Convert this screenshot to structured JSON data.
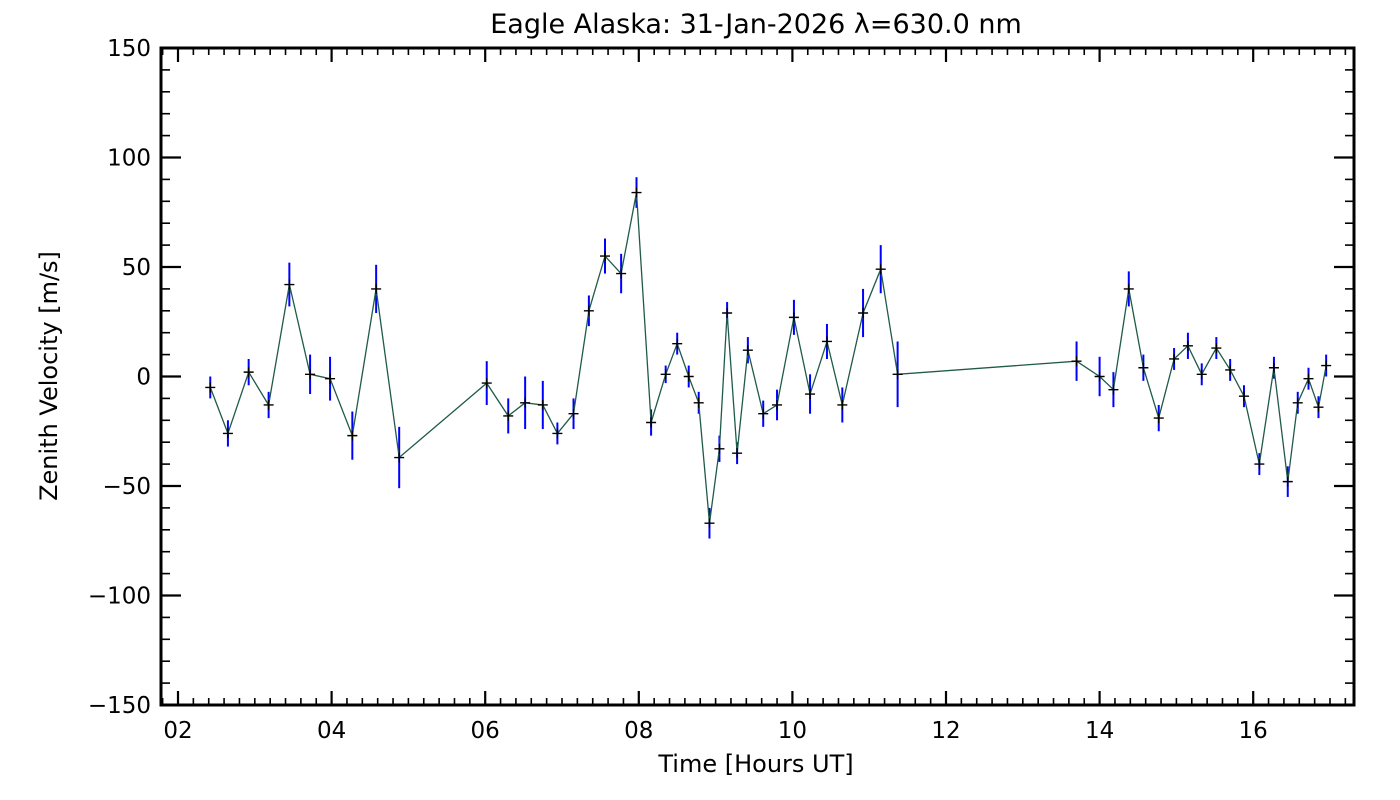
{
  "chart_data": {
    "type": "line",
    "title": "Eagle Alaska: 31-Jan-2026 λ=630.0 nm",
    "xlabel": "Time [Hours UT]",
    "ylabel": "Zenith Velocity [m/s]",
    "xlim": [
      1.8,
      17.6
    ],
    "ylim": [
      -150,
      150
    ],
    "xticks": [
      2,
      4,
      6,
      8,
      10,
      12,
      14,
      16
    ],
    "xtick_labels": [
      "02",
      "04",
      "06",
      "08",
      "10",
      "12",
      "14",
      "16"
    ],
    "yticks": [
      150,
      100,
      50,
      0,
      -50,
      -100,
      -150
    ],
    "ytick_labels": [
      "150",
      "100",
      "50",
      "0",
      "−50",
      "−100",
      "−150"
    ],
    "grid": false,
    "colors": {
      "line": "#1f5a4a",
      "errorbar": "#0000ff",
      "marker": "#000000",
      "axes": "#000000"
    },
    "series": [
      {
        "name": "Zenith Velocity",
        "x": [
          2.42,
          2.65,
          2.92,
          3.18,
          3.45,
          3.72,
          3.98,
          4.27,
          4.58,
          4.88,
          6.02,
          6.3,
          6.52,
          6.75,
          6.94,
          7.15,
          7.35,
          7.56,
          7.77,
          7.97,
          8.16,
          8.35,
          8.5,
          8.65,
          8.78,
          8.92,
          9.05,
          9.15,
          9.28,
          9.42,
          9.62,
          9.8,
          10.02,
          10.23,
          10.45,
          10.65,
          10.92,
          11.15,
          11.37,
          13.7,
          14.0,
          14.18,
          14.38,
          14.57,
          14.77,
          14.97,
          15.15,
          15.33,
          15.52,
          15.7,
          15.88,
          16.08,
          16.27,
          16.45,
          16.58,
          16.72,
          16.85,
          16.95
        ],
        "y": [
          -5,
          -26,
          2,
          -13,
          42,
          1,
          -1,
          -27,
          40,
          -37,
          -3,
          -18,
          -12,
          -13,
          -26,
          -17,
          30,
          55,
          47,
          84,
          -21,
          1,
          15,
          0,
          -12,
          -67,
          -33,
          29,
          -35,
          12,
          -17,
          -13,
          27,
          -8,
          16,
          -13,
          29,
          49,
          1,
          7,
          0,
          -6,
          40,
          4,
          -19,
          8,
          14,
          1,
          13,
          3,
          -9,
          -40,
          4,
          -48,
          -12,
          -1,
          -14,
          5
        ],
        "err": [
          5,
          6,
          6,
          6,
          10,
          9,
          10,
          11,
          11,
          14,
          10,
          8,
          12,
          11,
          5,
          7,
          7,
          8,
          9,
          7,
          6,
          4,
          5,
          5,
          5,
          7,
          6,
          5,
          5,
          6,
          6,
          7,
          8,
          9,
          8,
          8,
          11,
          11,
          15,
          9,
          9,
          8,
          8,
          6,
          6,
          5,
          6,
          5,
          5,
          5,
          5,
          5,
          5,
          7,
          5,
          5,
          5,
          5
        ]
      }
    ]
  }
}
